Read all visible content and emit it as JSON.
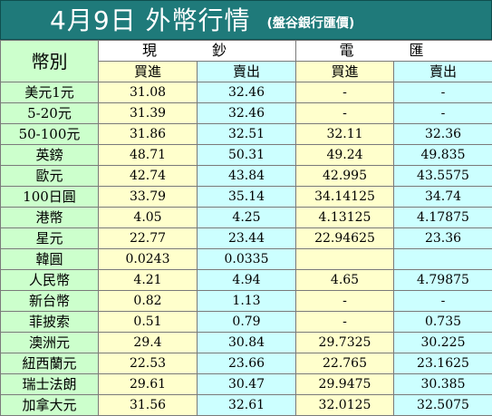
{
  "title": {
    "main": "4月9日 外幣行情",
    "source": "(盤谷銀行匯價)"
  },
  "headers": {
    "currency": "幣別",
    "cash_group": "現 鈔",
    "telegraphic_group": "電 匯",
    "buy": "買進",
    "sell": "賣出"
  },
  "rows": [
    {
      "currency": "美元1元",
      "cash_buy": "31.08",
      "cash_sell": "32.46",
      "tt_buy": "-",
      "tt_sell": "-"
    },
    {
      "currency": "5-20元",
      "cash_buy": "31.39",
      "cash_sell": "32.46",
      "tt_buy": "-",
      "tt_sell": "-"
    },
    {
      "currency": "50-100元",
      "cash_buy": "31.86",
      "cash_sell": "32.51",
      "tt_buy": "32.11",
      "tt_sell": "32.36"
    },
    {
      "currency": "英鎊",
      "cash_buy": "48.71",
      "cash_sell": "50.31",
      "tt_buy": "49.24",
      "tt_sell": "49.835"
    },
    {
      "currency": "歐元",
      "cash_buy": "42.74",
      "cash_sell": "43.84",
      "tt_buy": "42.995",
      "tt_sell": "43.5575"
    },
    {
      "currency": "100日圓",
      "cash_buy": "33.79",
      "cash_sell": "35.14",
      "tt_buy": "34.14125",
      "tt_sell": "34.74"
    },
    {
      "currency": "港幣",
      "cash_buy": "4.05",
      "cash_sell": "4.25",
      "tt_buy": "4.13125",
      "tt_sell": "4.17875"
    },
    {
      "currency": "星元",
      "cash_buy": "22.77",
      "cash_sell": "23.44",
      "tt_buy": "22.94625",
      "tt_sell": "23.36"
    },
    {
      "currency": "韓圓",
      "cash_buy": "0.0243",
      "cash_sell": "0.0335",
      "tt_buy": "",
      "tt_sell": ""
    },
    {
      "currency": "人民幣",
      "cash_buy": "4.21",
      "cash_sell": "4.94",
      "tt_buy": "4.65",
      "tt_sell": "4.79875"
    },
    {
      "currency": "新台幣",
      "cash_buy": "0.82",
      "cash_sell": "1.13",
      "tt_buy": "-",
      "tt_sell": "-"
    },
    {
      "currency": "菲披索",
      "cash_buy": "0.51",
      "cash_sell": "0.79",
      "tt_buy": "-",
      "tt_sell": "0.735"
    },
    {
      "currency": "澳洲元",
      "cash_buy": "29.4",
      "cash_sell": "30.84",
      "tt_buy": "29.7325",
      "tt_sell": "30.225"
    },
    {
      "currency": "紐西蘭元",
      "cash_buy": "22.53",
      "cash_sell": "23.66",
      "tt_buy": "22.765",
      "tt_sell": "23.1625"
    },
    {
      "currency": "瑞士法朗",
      "cash_buy": "29.61",
      "cash_sell": "30.47",
      "tt_buy": "29.9475",
      "tt_sell": "30.385"
    },
    {
      "currency": "加拿大元",
      "cash_buy": "31.56",
      "cash_sell": "32.61",
      "tt_buy": "32.0125",
      "tt_sell": "32.5075"
    }
  ],
  "colors": {
    "title_bg": "#1f7a7a",
    "currency_col_bg": "#ccffcc",
    "buy_col_bg": "#ffffcc",
    "sell_col_bg": "#ccffff"
  }
}
